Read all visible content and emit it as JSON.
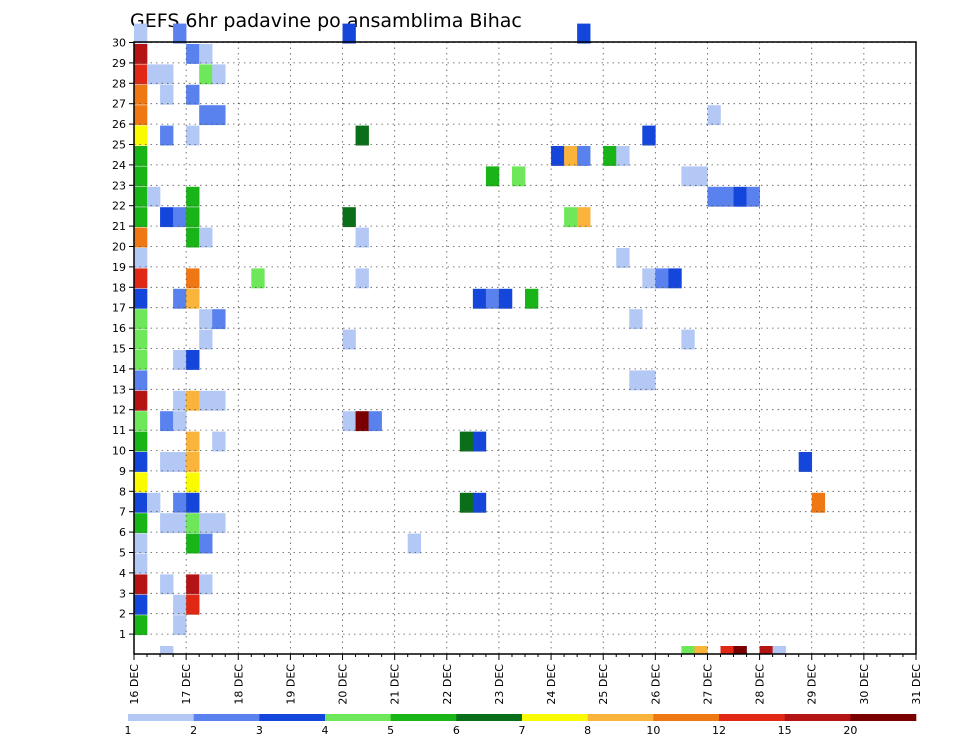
{
  "chart_data": {
    "type": "heatmap",
    "title": "GEFS 6hr padavine po ansamblima Bihac",
    "grid": true,
    "x_tick_labels": [
      "16 DEC",
      "17 DEC",
      "18 DEC",
      "19 DEC",
      "20 DEC",
      "21 DEC",
      "22 DEC",
      "23 DEC",
      "24 DEC",
      "25 DEC",
      "26 DEC",
      "27 DEC",
      "28 DEC",
      "29 DEC",
      "30 DEC",
      "31 DEC"
    ],
    "y_tick_labels": [
      "1",
      "2",
      "3",
      "4",
      "5",
      "6",
      "7",
      "8",
      "9",
      "10",
      "11",
      "12",
      "13",
      "14",
      "15",
      "16",
      "17",
      "18",
      "19",
      "20",
      "21",
      "22",
      "23",
      "24",
      "25",
      "26",
      "27",
      "28",
      "29",
      "30"
    ],
    "legend": {
      "position": "bottom",
      "labels": [
        "1",
        "2",
        "3",
        "4",
        "5",
        "6",
        "7",
        "8",
        "10",
        "12",
        "15",
        "20"
      ],
      "colors": [
        "#b4c8f5",
        "#5a82ee",
        "#1446dc",
        "#6ee85a",
        "#18b418",
        "#0b6e18",
        "#fafa00",
        "#fab43c",
        "#f07814",
        "#e02814",
        "#b41414",
        "#7a0000"
      ]
    },
    "cell_time_unit": "6 hours",
    "cells": [
      {
        "m": 0,
        "t": 0,
        "v": 5
      },
      {
        "m": 0,
        "t": 1,
        "v": 3
      },
      {
        "m": 0,
        "t": 2,
        "v": 15
      },
      {
        "m": 0,
        "t": 3,
        "v": 1
      },
      {
        "m": 0,
        "t": 4,
        "v": 1
      },
      {
        "m": 0,
        "t": 5,
        "v": 5
      },
      {
        "m": 0,
        "t": 6,
        "v": 3
      },
      {
        "m": 0,
        "t": 7,
        "v": 7
      },
      {
        "m": 0,
        "t": 8,
        "v": 3
      },
      {
        "m": 0,
        "t": 9,
        "v": 5
      },
      {
        "m": 0,
        "t": 10,
        "v": 4
      },
      {
        "m": 0,
        "t": 11,
        "v": 15
      },
      {
        "m": 0,
        "t": 12,
        "v": 2
      },
      {
        "m": 0,
        "t": 13,
        "v": 4
      },
      {
        "m": 0,
        "t": 14,
        "v": 4
      },
      {
        "m": 0,
        "t": 15,
        "v": 4
      },
      {
        "m": 0,
        "t": 16,
        "v": 3
      },
      {
        "m": 0,
        "t": 17,
        "v": 12
      },
      {
        "m": 0,
        "t": 18,
        "v": 1
      },
      {
        "m": 0,
        "t": 19,
        "v": 10
      },
      {
        "m": 0,
        "t": 20,
        "v": 5
      },
      {
        "m": 0,
        "t": 21,
        "v": 5
      },
      {
        "m": 0,
        "t": 22,
        "v": 5
      },
      {
        "m": 0,
        "t": 23,
        "v": 5
      },
      {
        "m": 0,
        "t": 24,
        "v": 7
      },
      {
        "m": 0,
        "t": 25,
        "v": 10
      },
      {
        "m": 0,
        "t": 26,
        "v": 10
      },
      {
        "m": 0,
        "t": 27,
        "v": 12
      },
      {
        "m": 0,
        "t": 28,
        "v": 15
      },
      {
        "m": 0,
        "t": 29,
        "v": 1
      },
      {
        "m": 1,
        "t": 6,
        "v": 1
      },
      {
        "m": 1,
        "t": 21,
        "v": 1
      },
      {
        "m": 1,
        "t": 27,
        "v": 1
      },
      {
        "m": 2,
        "t": -1,
        "v": 1
      },
      {
        "m": 2,
        "t": 2,
        "v": 1
      },
      {
        "m": 2,
        "t": 5,
        "v": 1
      },
      {
        "m": 2,
        "t": 8,
        "v": 1
      },
      {
        "m": 2,
        "t": 10,
        "v": 2
      },
      {
        "m": 2,
        "t": 20,
        "v": 3
      },
      {
        "m": 2,
        "t": 24,
        "v": 2
      },
      {
        "m": 2,
        "t": 26,
        "v": 1
      },
      {
        "m": 2,
        "t": 27,
        "v": 1
      },
      {
        "m": 3,
        "t": 0,
        "v": 1
      },
      {
        "m": 3,
        "t": 1,
        "v": 1
      },
      {
        "m": 3,
        "t": 5,
        "v": 1
      },
      {
        "m": 3,
        "t": 6,
        "v": 2
      },
      {
        "m": 3,
        "t": 8,
        "v": 1
      },
      {
        "m": 3,
        "t": 10,
        "v": 1
      },
      {
        "m": 3,
        "t": 11,
        "v": 1
      },
      {
        "m": 3,
        "t": 13,
        "v": 1
      },
      {
        "m": 3,
        "t": 16,
        "v": 2
      },
      {
        "m": 3,
        "t": 20,
        "v": 2
      },
      {
        "m": 3,
        "t": 29,
        "v": 2
      },
      {
        "m": 4,
        "t": 1,
        "v": 12
      },
      {
        "m": 4,
        "t": 2,
        "v": 15
      },
      {
        "m": 4,
        "t": 4,
        "v": 5
      },
      {
        "m": 4,
        "t": 5,
        "v": 4
      },
      {
        "m": 4,
        "t": 6,
        "v": 3
      },
      {
        "m": 4,
        "t": 7,
        "v": 7
      },
      {
        "m": 4,
        "t": 8,
        "v": 8
      },
      {
        "m": 4,
        "t": 9,
        "v": 8
      },
      {
        "m": 4,
        "t": 11,
        "v": 8
      },
      {
        "m": 4,
        "t": 13,
        "v": 3
      },
      {
        "m": 4,
        "t": 16,
        "v": 8
      },
      {
        "m": 4,
        "t": 17,
        "v": 10
      },
      {
        "m": 4,
        "t": 19,
        "v": 5
      },
      {
        "m": 4,
        "t": 20,
        "v": 5
      },
      {
        "m": 4,
        "t": 21,
        "v": 5
      },
      {
        "m": 4,
        "t": 24,
        "v": 1
      },
      {
        "m": 4,
        "t": 26,
        "v": 2
      },
      {
        "m": 4,
        "t": 28,
        "v": 2
      },
      {
        "m": 5,
        "t": 2,
        "v": 1
      },
      {
        "m": 5,
        "t": 4,
        "v": 2
      },
      {
        "m": 5,
        "t": 5,
        "v": 1
      },
      {
        "m": 5,
        "t": 11,
        "v": 1
      },
      {
        "m": 5,
        "t": 14,
        "v": 1
      },
      {
        "m": 5,
        "t": 15,
        "v": 1
      },
      {
        "m": 5,
        "t": 19,
        "v": 1
      },
      {
        "m": 5,
        "t": 25,
        "v": 2
      },
      {
        "m": 5,
        "t": 27,
        "v": 4
      },
      {
        "m": 5,
        "t": 28,
        "v": 1
      },
      {
        "m": 6,
        "t": 5,
        "v": 1
      },
      {
        "m": 6,
        "t": 9,
        "v": 1
      },
      {
        "m": 6,
        "t": 11,
        "v": 1
      },
      {
        "m": 6,
        "t": 15,
        "v": 2
      },
      {
        "m": 6,
        "t": 25,
        "v": 2
      },
      {
        "m": 6,
        "t": 27,
        "v": 1
      },
      {
        "m": 9,
        "t": 17,
        "v": 4
      },
      {
        "m": 16,
        "t": 10,
        "v": 1
      },
      {
        "m": 16,
        "t": 14,
        "v": 1
      },
      {
        "m": 16,
        "t": 20,
        "v": 6
      },
      {
        "m": 16,
        "t": 29,
        "v": 3
      },
      {
        "m": 17,
        "t": 10,
        "v": 20
      },
      {
        "m": 17,
        "t": 17,
        "v": 1
      },
      {
        "m": 17,
        "t": 19,
        "v": 1
      },
      {
        "m": 17,
        "t": 24,
        "v": 6
      },
      {
        "m": 18,
        "t": 10,
        "v": 2
      },
      {
        "m": 21,
        "t": 4,
        "v": 1
      },
      {
        "m": 25,
        "t": 6,
        "v": 6
      },
      {
        "m": 25,
        "t": 9,
        "v": 6
      },
      {
        "m": 26,
        "t": 6,
        "v": 3
      },
      {
        "m": 26,
        "t": 9,
        "v": 3
      },
      {
        "m": 26,
        "t": 16,
        "v": 3
      },
      {
        "m": 27,
        "t": 16,
        "v": 2
      },
      {
        "m": 27,
        "t": 22,
        "v": 5
      },
      {
        "m": 28,
        "t": 16,
        "v": 3
      },
      {
        "m": 29,
        "t": 22,
        "v": 4
      },
      {
        "m": 30,
        "t": 16,
        "v": 5
      },
      {
        "m": 32,
        "t": 23,
        "v": 3
      },
      {
        "m": 33,
        "t": 23,
        "v": 8
      },
      {
        "m": 33,
        "t": 20,
        "v": 4
      },
      {
        "m": 34,
        "t": 23,
        "v": 2
      },
      {
        "m": 34,
        "t": 20,
        "v": 8
      },
      {
        "m": 34,
        "t": 29,
        "v": 3
      },
      {
        "m": 36,
        "t": 23,
        "v": 5
      },
      {
        "m": 37,
        "t": 23,
        "v": 1
      },
      {
        "m": 37,
        "t": 18,
        "v": 1
      },
      {
        "m": 38,
        "t": 15,
        "v": 1
      },
      {
        "m": 38,
        "t": 12,
        "v": 1
      },
      {
        "m": 39,
        "t": 24,
        "v": 3
      },
      {
        "m": 39,
        "t": 17,
        "v": 1
      },
      {
        "m": 39,
        "t": 12,
        "v": 1
      },
      {
        "m": 40,
        "t": 17,
        "v": 2
      },
      {
        "m": 41,
        "t": 17,
        "v": 3
      },
      {
        "m": 42,
        "t": -1,
        "v": 4
      },
      {
        "m": 42,
        "t": 22,
        "v": 1
      },
      {
        "m": 42,
        "t": 14,
        "v": 1
      },
      {
        "m": 43,
        "t": -1,
        "v": 8
      },
      {
        "m": 43,
        "t": 22,
        "v": 1
      },
      {
        "m": 44,
        "t": 25,
        "v": 1
      },
      {
        "m": 44,
        "t": 21,
        "v": 2
      },
      {
        "m": 45,
        "t": -1,
        "v": 12
      },
      {
        "m": 45,
        "t": 21,
        "v": 2
      },
      {
        "m": 46,
        "t": -1,
        "v": 20
      },
      {
        "m": 46,
        "t": 21,
        "v": 3
      },
      {
        "m": 47,
        "t": 21,
        "v": 2
      },
      {
        "m": 48,
        "t": -1,
        "v": 15
      },
      {
        "m": 49,
        "t": -1,
        "v": 1
      },
      {
        "m": 51,
        "t": 8,
        "v": 3
      },
      {
        "m": 52,
        "t": 6,
        "v": 10
      }
    ]
  }
}
